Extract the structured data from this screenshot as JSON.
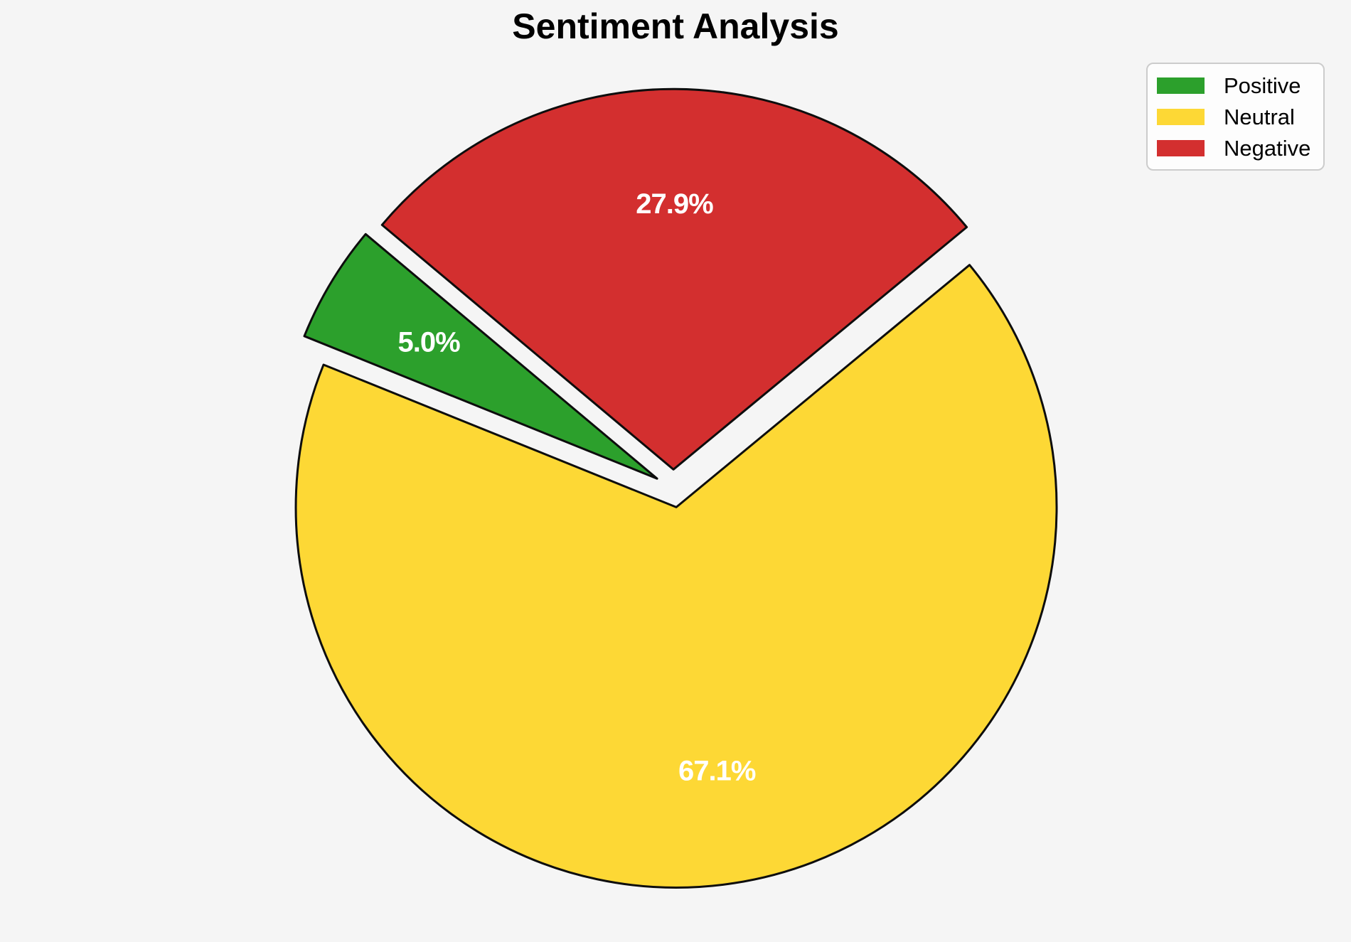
{
  "title": "Sentiment Analysis",
  "chart_data": {
    "type": "pie",
    "title": "Sentiment Analysis",
    "slices": [
      {
        "label": "Positive",
        "value": 5.0,
        "pct_label": "5.0%",
        "color": "#2ca02c"
      },
      {
        "label": "Neutral",
        "value": 67.1,
        "pct_label": "67.1%",
        "color": "#fdd835"
      },
      {
        "label": "Negative",
        "value": 27.9,
        "pct_label": "27.9%",
        "color": "#d32f2f"
      }
    ],
    "startangle": 140,
    "counterclockwise": true,
    "explode": [
      0.05,
      0.05,
      0.05
    ],
    "pctdistance": 0.7,
    "edge_color": "#0d0d0d",
    "edge_width": 3,
    "label_text_color": "#ffffff",
    "background_color": "#f5f5f5",
    "legend_position": "upper right"
  },
  "legend": {
    "items": [
      {
        "label": "Positive",
        "color": "#2ca02c"
      },
      {
        "label": "Neutral",
        "color": "#fdd835"
      },
      {
        "label": "Negative",
        "color": "#d32f2f"
      }
    ]
  }
}
